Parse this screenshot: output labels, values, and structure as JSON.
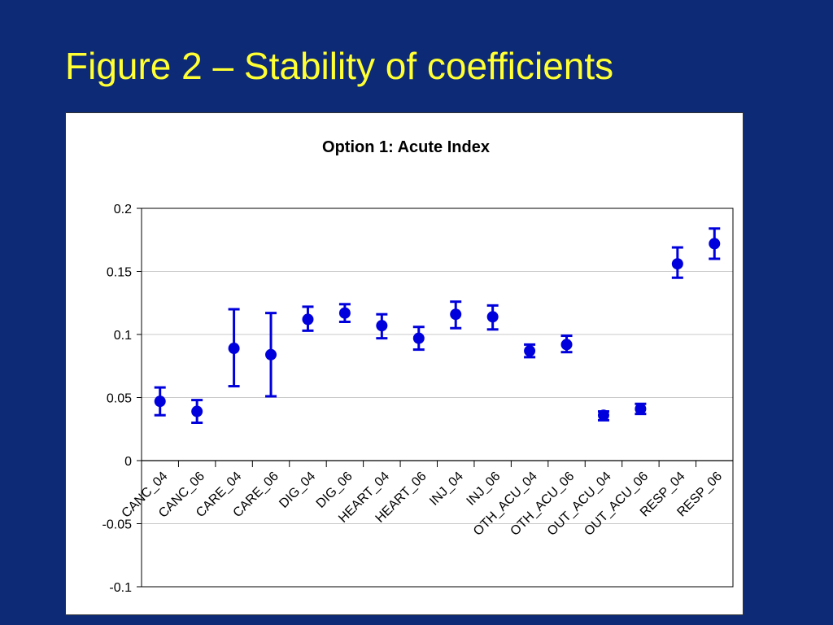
{
  "slide": {
    "title": "Figure 2 – Stability of coefficients",
    "background_color": "#0c2a75",
    "title_color": "#ffff33"
  },
  "chart_data": {
    "type": "scatter",
    "title": "Option 1: Acute Index",
    "xlabel": "",
    "ylabel": "",
    "ylim": [
      -0.1,
      0.2
    ],
    "yticks": [
      "0.2",
      "0.15",
      "0.1",
      "0.05",
      "0",
      "-0.05",
      "-0.1"
    ],
    "ytick_values": [
      0.2,
      0.15,
      0.1,
      0.05,
      0,
      -0.05,
      -0.1
    ],
    "grid": true,
    "marker_color": "#0000dd",
    "categories": [
      "CANC_04",
      "CANC_06",
      "CARE_04",
      "CARE_06",
      "DIG_04",
      "DIG_06",
      "HEART_04",
      "HEART_06",
      "INJ_04",
      "INJ_06",
      "OTH_ACU_04",
      "OTH_ACU_06",
      "OUT_ACU_04",
      "OUT_ACU_06",
      "RESP_04",
      "RESP_06"
    ],
    "values": [
      0.047,
      0.039,
      0.089,
      0.084,
      0.112,
      0.117,
      0.107,
      0.097,
      0.116,
      0.114,
      0.087,
      0.092,
      0.036,
      0.041,
      0.156,
      0.172
    ],
    "upper": [
      0.058,
      0.048,
      0.12,
      0.117,
      0.122,
      0.124,
      0.116,
      0.106,
      0.126,
      0.123,
      0.092,
      0.099,
      0.039,
      0.045,
      0.169,
      0.184
    ],
    "lower": [
      0.036,
      0.03,
      0.059,
      0.051,
      0.103,
      0.11,
      0.097,
      0.088,
      0.105,
      0.104,
      0.082,
      0.086,
      0.032,
      0.037,
      0.145,
      0.16
    ]
  }
}
